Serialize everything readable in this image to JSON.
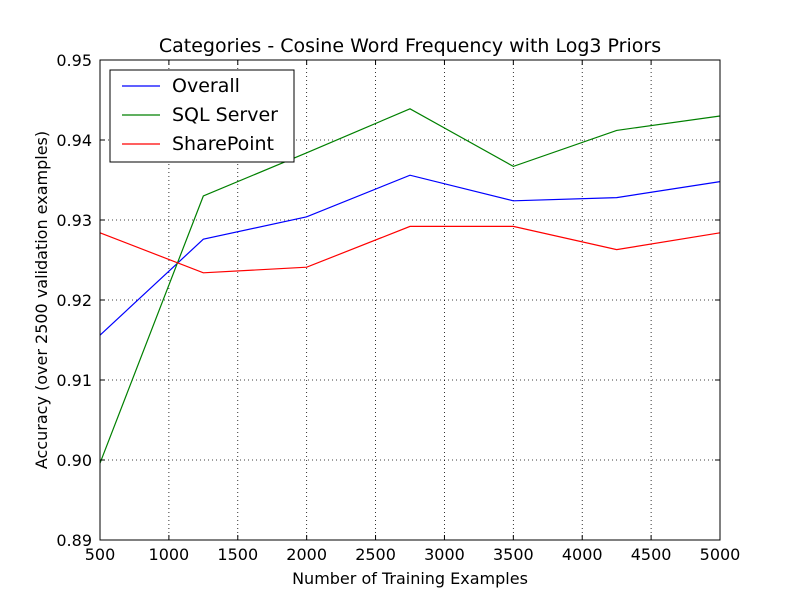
{
  "chart_data": {
    "type": "line",
    "title": "Categories - Cosine Word Frequency with Log3 Priors",
    "xlabel": "Number of Training Examples",
    "ylabel": "Accuracy (over 2500 validation examples)",
    "xlim": [
      500,
      5000
    ],
    "ylim": [
      0.89,
      0.95
    ],
    "grid": true,
    "legend_position": "top-left",
    "x_ticks": [
      500,
      1000,
      1500,
      2000,
      2500,
      3000,
      3500,
      4000,
      4500,
      5000
    ],
    "x_tick_labels": [
      "500",
      "1000",
      "1500",
      "2000",
      "2500",
      "3000",
      "3500",
      "4000",
      "4500",
      "5000"
    ],
    "y_ticks": [
      0.89,
      0.9,
      0.91,
      0.92,
      0.93,
      0.94,
      0.95
    ],
    "y_tick_labels": [
      "0.89",
      "0.90",
      "0.91",
      "0.92",
      "0.93",
      "0.94",
      "0.95"
    ],
    "x": [
      500,
      1250,
      2000,
      2750,
      3500,
      4250,
      5000
    ],
    "series": [
      {
        "name": "Overall",
        "color": "#0000ff",
        "values": [
          0.9156,
          0.9276,
          0.9304,
          0.9356,
          0.9324,
          0.9328,
          0.9348
        ]
      },
      {
        "name": "SQL Server",
        "color": "#008000",
        "values": [
          0.8996,
          0.933,
          0.9384,
          0.9439,
          0.9367,
          0.9412,
          0.943
        ]
      },
      {
        "name": "SharePoint",
        "color": "#ff0000",
        "values": [
          0.9284,
          0.9234,
          0.9241,
          0.9292,
          0.9292,
          0.9263,
          0.9284
        ]
      }
    ]
  }
}
